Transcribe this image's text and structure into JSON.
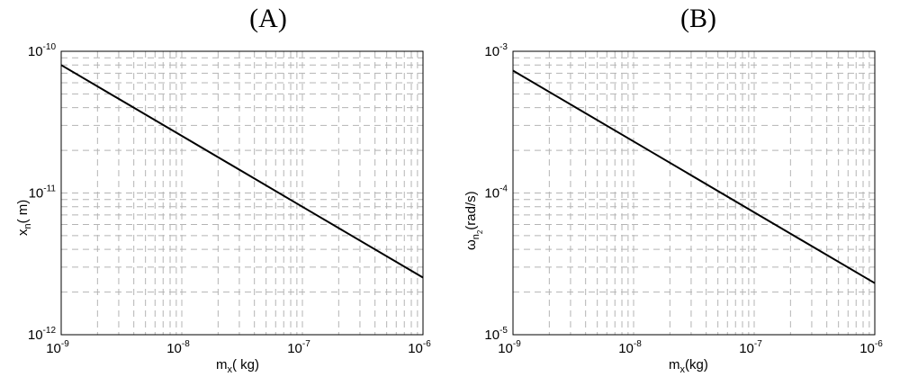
{
  "chart_data": [
    {
      "type": "line",
      "title": "(A)",
      "xlabel": {
        "main": "m",
        "sub": "x",
        "rest": "( kg)"
      },
      "ylabel": {
        "main": "x",
        "sub": "n",
        "rest": "( m)"
      },
      "xscale": "log",
      "yscale": "log",
      "xlim": [
        1e-09,
        1e-06
      ],
      "ylim": [
        1e-12,
        1e-10
      ],
      "xticks": [
        {
          "base": "10",
          "exp": "-9",
          "value": 1e-09
        },
        {
          "base": "10",
          "exp": "-8",
          "value": 1e-08
        },
        {
          "base": "10",
          "exp": "-7",
          "value": 1e-07
        },
        {
          "base": "10",
          "exp": "-6",
          "value": 1e-06
        }
      ],
      "yticks": [
        {
          "base": "10",
          "exp": "-12",
          "value": 1e-12
        },
        {
          "base": "10",
          "exp": "-11",
          "value": 1e-11
        },
        {
          "base": "10",
          "exp": "-10",
          "value": 1e-10
        }
      ],
      "grid": true,
      "x": [
        1e-09,
        1e-08,
        1e-07,
        1e-06
      ],
      "y": [
        8e-11,
        2.53e-11,
        8e-12,
        2.53e-12
      ]
    },
    {
      "type": "line",
      "title": "(B)",
      "xlabel": {
        "main": "m",
        "sub": "x",
        "rest": "(kg)"
      },
      "ylabel": {
        "main": "ω",
        "sub": "n",
        "subsub": "2",
        "rest": "(rad/s)"
      },
      "xscale": "log",
      "yscale": "log",
      "xlim": [
        1e-09,
        1e-06
      ],
      "ylim": [
        1e-05,
        0.001
      ],
      "xticks": [
        {
          "base": "10",
          "exp": "-9",
          "value": 1e-09
        },
        {
          "base": "10",
          "exp": "-8",
          "value": 1e-08
        },
        {
          "base": "10",
          "exp": "-7",
          "value": 1e-07
        },
        {
          "base": "10",
          "exp": "-6",
          "value": 1e-06
        }
      ],
      "yticks": [
        {
          "base": "10",
          "exp": "-5",
          "value": 1e-05
        },
        {
          "base": "10",
          "exp": "-4",
          "value": 0.0001
        },
        {
          "base": "10",
          "exp": "-3",
          "value": 0.001
        }
      ],
      "grid": true,
      "x": [
        1e-09,
        1e-08,
        1e-07,
        1e-06
      ],
      "y": [
        0.00073,
        0.000231,
        7.3e-05,
        2.31e-05
      ]
    }
  ]
}
